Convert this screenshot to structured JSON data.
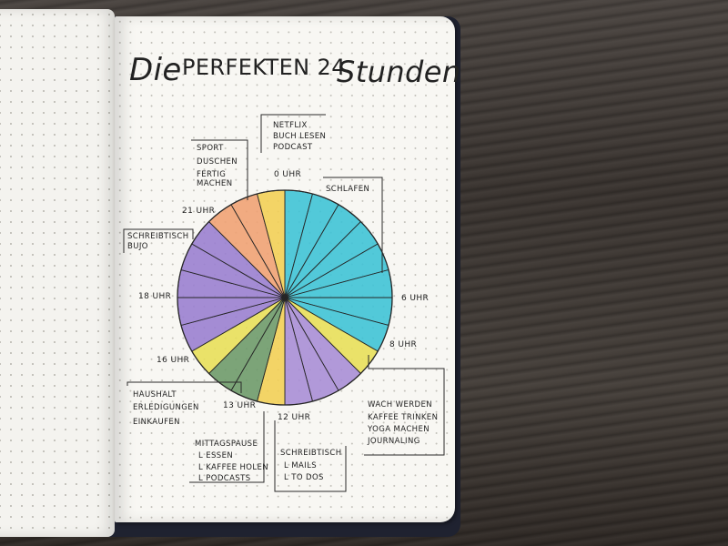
{
  "title": {
    "word1": "Die",
    "word2": "PERFEKTEN 24",
    "word3": "Stunden"
  },
  "hour_labels": {
    "h0": "0 UHR",
    "h6": "6 UHR",
    "h8": "8 UHR",
    "h12": "12 UHR",
    "h13": "13 UHR",
    "h16": "16 UHR",
    "h18": "18 UHR",
    "h21": "21 UHR"
  },
  "notes": {
    "evening": [
      "NETFLIX",
      "BUCH LESEN",
      "PODCAST"
    ],
    "morning_prep": [
      "SPORT",
      "DUSCHEN",
      "FERTIG",
      "MACHEN"
    ],
    "sleep": [
      "SCHLAFEN"
    ],
    "desk": [
      "SCHREIBTISCH",
      "BUJO"
    ],
    "household": [
      "HAUSHALT",
      "ERLEDIGUNGEN",
      "EINKAUFEN"
    ],
    "wake": [
      "WACH WERDEN",
      "KAFFEE TRINKEN",
      "YOGA MACHEN",
      "JOURNALING"
    ],
    "lunch": [
      "MITTAGSPAUSE",
      "L ESSEN",
      "L KAFFEE HOLEN",
      "L PODCASTS"
    ],
    "work": [
      "SCHREIBTISCH",
      "L MAILS",
      "L TO DOS"
    ]
  },
  "colors": {
    "sleep": "#3fc3d6",
    "wake": "#e8df5a",
    "work": "#a98ed6",
    "lunch": "#6e9a6a",
    "afternoon": "#e8df5a",
    "desk": "#9a7fd0",
    "peach": "#f0a274",
    "evening": "#f2cf56",
    "outline": "#262626"
  },
  "pie_segments": [
    {
      "from": 0,
      "to": 6,
      "color_key": "sleep"
    },
    {
      "from": 6,
      "to": 8,
      "color_key": "sleep"
    },
    {
      "from": 8,
      "to": 9,
      "color_key": "wake"
    },
    {
      "from": 9,
      "to": 12,
      "color_key": "work"
    },
    {
      "from": 12,
      "to": 13,
      "color_key": "evening"
    },
    {
      "from": 13,
      "to": 15,
      "color_key": "lunch"
    },
    {
      "from": 15,
      "to": 16,
      "color_key": "afternoon"
    },
    {
      "from": 16,
      "to": 18,
      "color_key": "desk"
    },
    {
      "from": 18,
      "to": 21,
      "color_key": "desk"
    },
    {
      "from": 21,
      "to": 23,
      "color_key": "peach"
    },
    {
      "from": 23,
      "to": 24,
      "color_key": "evening"
    }
  ]
}
